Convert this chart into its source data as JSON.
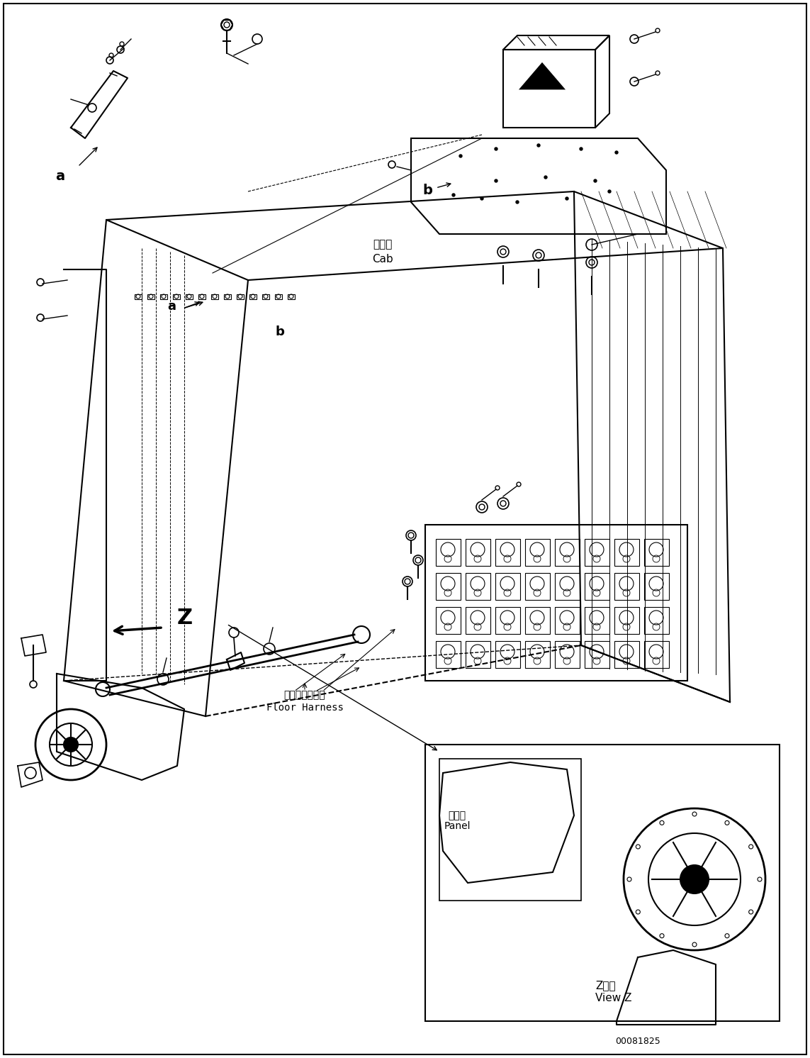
{
  "title": "",
  "background_color": "#ffffff",
  "line_color": "#000000",
  "fig_width": 11.43,
  "fig_height": 14.92,
  "dpi": 100,
  "part_number": "00081825",
  "labels": {
    "cab_jp": "キャブ",
    "cab_en": "Cab",
    "floor_harness_jp": "フロアハーネス",
    "floor_harness_en": "Floor Harness",
    "panel_jp": "パネル",
    "panel_en": "Panel",
    "view_z_jp": "Z　視",
    "view_z_en": "View Z",
    "label_a": "a",
    "label_b": "b",
    "label_z": "Z"
  }
}
